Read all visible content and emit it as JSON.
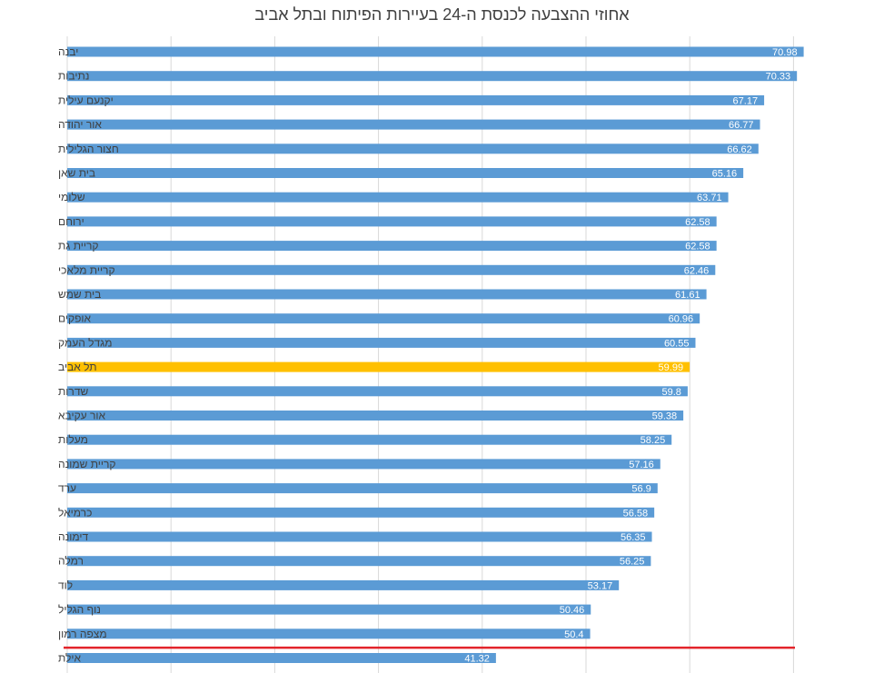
{
  "chart_data": {
    "type": "bar",
    "orientation": "horizontal",
    "title": "אחוזי ההצבעה לכנסת ה-24 בעיירות הפיתוח ובתל אביב",
    "xlabel": "",
    "ylabel": "",
    "xlim": [
      0,
      70
    ],
    "grid": "vertical",
    "categories": [
      "יבנה",
      "נתיבות",
      "יקנעם עילית",
      "אור יהודה",
      "חצור הגלילית",
      "בית שאן",
      "שלומי",
      "ירוחם",
      "קריית גת",
      "קריית מלאכי",
      "בית שמש",
      "אופקים",
      "מגדל העמק",
      "תל אביב",
      "שדרות",
      "אור עקיבא",
      "מעלות",
      "קריית שמונה",
      "ערד",
      "כרמיאל",
      "דימונה",
      "רמלה",
      "לוד",
      "נוף הגליל",
      "מצפה רמון",
      "אילת"
    ],
    "values": [
      70.98,
      70.33,
      67.17,
      66.77,
      66.62,
      65.16,
      63.71,
      62.58,
      62.58,
      62.46,
      61.61,
      60.96,
      60.55,
      59.99,
      59.8,
      59.38,
      58.25,
      57.16,
      56.9,
      56.58,
      56.35,
      56.25,
      53.17,
      50.46,
      50.4,
      41.32
    ],
    "highlight_category": "תל אביב",
    "colors": {
      "bar": "#5B9BD5",
      "highlight": "#FFC000",
      "divider_line": "#E3242B",
      "grid": "#D9D9D9",
      "label": "#ffffff",
      "category_text": "#404040"
    }
  }
}
